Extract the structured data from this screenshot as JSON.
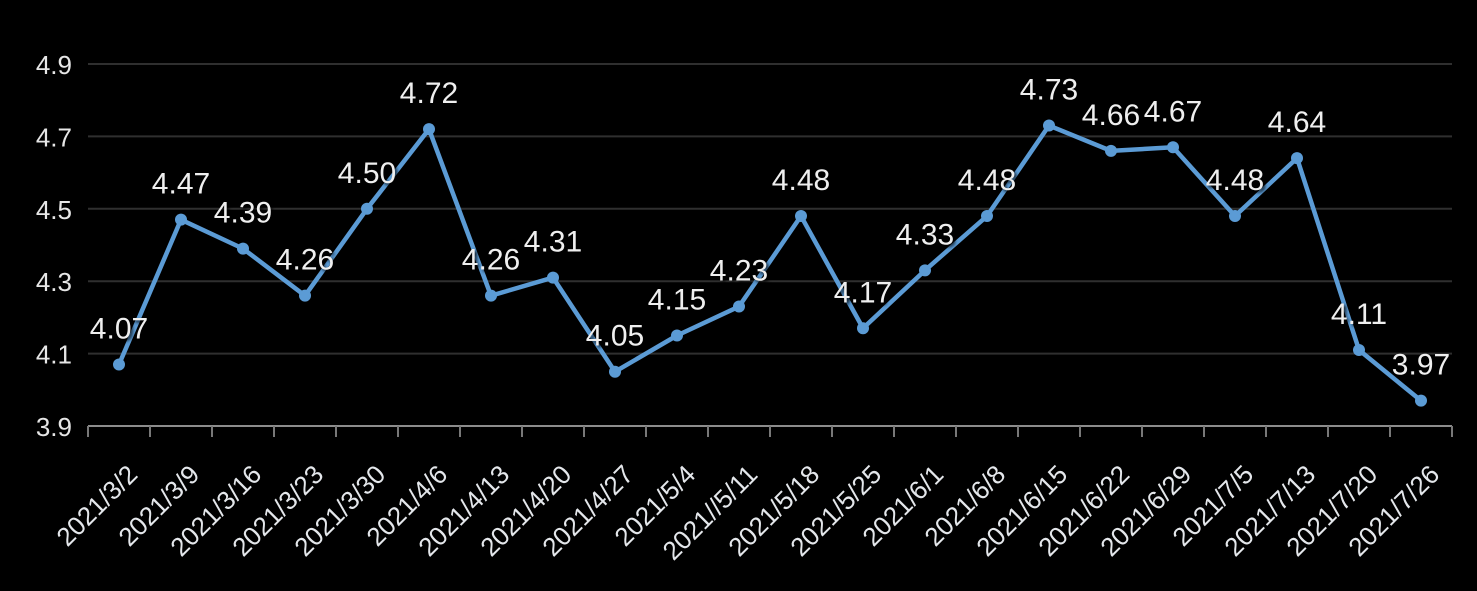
{
  "chart_data": {
    "type": "line",
    "title": "",
    "xlabel": "",
    "ylabel": "",
    "categories": [
      "2021/3/2",
      "2021/3/9",
      "2021/3/16",
      "2021/3/23",
      "2021/3/30",
      "2021/4/6",
      "2021/4/13",
      "2021/4/20",
      "2021/4/27",
      "2021/5/4",
      "2021//5/11",
      "2021/5/18",
      "2021/5/25",
      "2021/6/1",
      "2021/6/8",
      "2021/6/15",
      "2021/6/22",
      "2021/6/29",
      "2021/7/5",
      "2021/7/13",
      "2021/7/20",
      "2021/7/26"
    ],
    "series": [
      {
        "name": "value",
        "values": [
          4.07,
          4.47,
          4.39,
          4.26,
          4.5,
          4.72,
          4.26,
          4.31,
          4.05,
          4.15,
          4.23,
          4.48,
          4.17,
          4.33,
          4.48,
          4.73,
          4.66,
          4.67,
          4.48,
          4.64,
          4.11,
          3.97
        ],
        "data_labels": [
          "4.07",
          "4.47",
          "4.39",
          "4.26",
          "4.50",
          "4.72",
          "4.26",
          "4.31",
          "4.05",
          "4.15",
          "4.23",
          "4.48",
          "4.17",
          "4.33",
          "4.48",
          "4.73",
          "4.66",
          "4.67",
          "4.48",
          "4.64",
          "4.11",
          "3.97"
        ]
      }
    ],
    "ylim": [
      3.9,
      4.9
    ],
    "ytick_labels": [
      "3.9",
      "4.1",
      "4.3",
      "4.5",
      "4.7",
      "4.9"
    ],
    "ytick_values": [
      3.9,
      4.1,
      4.3,
      4.5,
      4.7,
      4.9
    ],
    "grid": true,
    "legend_position": "none",
    "x_label_rotation_deg": 45,
    "colors": {
      "background": "#000000",
      "line": "#5B9BD5",
      "marker": "#5B9BD5",
      "data_label_text": "#efefef",
      "tick_label_text": "#e6e6e6",
      "gridline": "#2f2f2f",
      "axis": "#8c8c8c"
    }
  }
}
